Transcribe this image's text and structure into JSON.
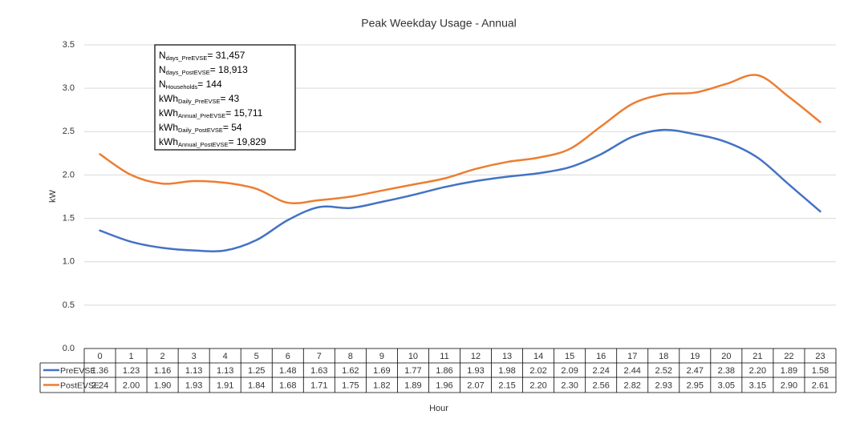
{
  "chart_data": {
    "type": "line",
    "title": "Peak Weekday Usage - Annual",
    "x_label": "Hour",
    "y_label": "kW",
    "categories": [
      "0",
      "1",
      "2",
      "3",
      "4",
      "5",
      "6",
      "7",
      "8",
      "9",
      "10",
      "11",
      "12",
      "13",
      "14",
      "15",
      "16",
      "17",
      "18",
      "19",
      "20",
      "21",
      "22",
      "23"
    ],
    "series": [
      {
        "name": "PreEVSE",
        "color": "#4472c4",
        "values": [
          1.36,
          1.23,
          1.16,
          1.13,
          1.13,
          1.25,
          1.48,
          1.63,
          1.62,
          1.69,
          1.77,
          1.86,
          1.93,
          1.98,
          2.02,
          2.09,
          2.24,
          2.44,
          2.52,
          2.47,
          2.38,
          2.2,
          1.89,
          1.58
        ],
        "value_labels": [
          "1.36",
          "1.23",
          "1.16",
          "1.13",
          "1.13",
          "1.25",
          "1.48",
          "1.63",
          "1.62",
          "1.69",
          "1.77",
          "1.86",
          "1.93",
          "1.98",
          "2.02",
          "2.09",
          "2.24",
          "2.44",
          "2.52",
          "2.47",
          "2.38",
          "2.20",
          "1.89",
          "1.58"
        ]
      },
      {
        "name": "PostEVSE",
        "color": "#ed7d31",
        "values": [
          2.24,
          2.0,
          1.9,
          1.93,
          1.91,
          1.84,
          1.68,
          1.71,
          1.75,
          1.82,
          1.89,
          1.96,
          2.07,
          2.15,
          2.2,
          2.3,
          2.56,
          2.82,
          2.93,
          2.95,
          3.05,
          3.15,
          2.9,
          2.61
        ],
        "value_labels": [
          "2.24",
          "2.00",
          "1.90",
          "1.93",
          "1.91",
          "1.84",
          "1.68",
          "1.71",
          "1.75",
          "1.82",
          "1.89",
          "1.96",
          "2.07",
          "2.15",
          "2.20",
          "2.30",
          "2.56",
          "2.82",
          "2.93",
          "2.95",
          "3.05",
          "3.15",
          "2.90",
          "2.61"
        ]
      }
    ],
    "ylim": [
      0,
      3.5
    ],
    "yticks": [
      {
        "value": 0,
        "label": "0.0"
      },
      {
        "value": 0.5,
        "label": "0.5"
      },
      {
        "value": 1,
        "label": "1.0"
      },
      {
        "value": 1.5,
        "label": "1.5"
      },
      {
        "value": 2,
        "label": "2.0"
      },
      {
        "value": 2.5,
        "label": "2.5"
      },
      {
        "value": 3,
        "label": "3.0"
      },
      {
        "value": 3.5,
        "label": "3.5"
      }
    ],
    "grid": true,
    "smooth": true,
    "annotations": [
      {
        "base": "N",
        "sub": "days_PreEVSE",
        "rest": "= 31,457"
      },
      {
        "base": "N",
        "sub": "days_PostEVSE",
        "rest": "= 18,913"
      },
      {
        "base": "N",
        "sub": "Households",
        "rest": "= 144"
      },
      {
        "base": "kWh",
        "sub": "Daily_PreEVSE",
        "rest": "= 43"
      },
      {
        "base": "kWh",
        "sub": "Annual_PreEVSE",
        "rest": "= 15,711"
      },
      {
        "base": "kWh",
        "sub": "Daily_PostEVSE",
        "rest": "= 54"
      },
      {
        "base": "kWh",
        "sub": "Annual_PostEVSE",
        "rest": "= 19,829"
      }
    ]
  }
}
